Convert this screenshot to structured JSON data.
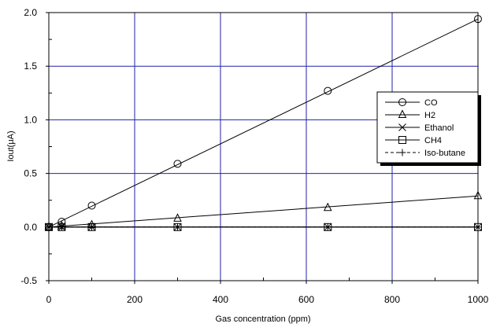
{
  "chart_data": {
    "type": "line",
    "title": "",
    "xlabel": "Gas concentration (ppm)",
    "ylabel": "Iout(μA)",
    "xlim": [
      0,
      1000
    ],
    "ylim": [
      -0.5,
      2.0
    ],
    "x_ticks": [
      "0",
      "200",
      "400",
      "600",
      "800",
      "1000"
    ],
    "y_ticks": [
      "-0.5",
      "0.0",
      "0.5",
      "1.0",
      "1.5",
      "2.0"
    ],
    "x_tick_values": [
      0,
      200,
      400,
      600,
      800,
      1000
    ],
    "y_tick_values": [
      -0.5,
      0.0,
      0.5,
      1.0,
      1.5,
      2.0
    ],
    "grid": true,
    "grid_color": "#2222aa",
    "legend_position": "right",
    "series": [
      {
        "name": "CO",
        "marker": "circle",
        "line": "solid",
        "points": [
          [
            0,
            0.0
          ],
          [
            30,
            0.05
          ],
          [
            100,
            0.2
          ],
          [
            300,
            0.59
          ],
          [
            650,
            1.27
          ],
          [
            1000,
            1.94
          ]
        ],
        "fit": [
          [
            0,
            0.0
          ],
          [
            1000,
            1.94
          ]
        ]
      },
      {
        "name": "H2",
        "marker": "triangle",
        "line": "solid",
        "points": [
          [
            0,
            0.0
          ],
          [
            30,
            0.01
          ],
          [
            100,
            0.02
          ],
          [
            300,
            0.08
          ],
          [
            650,
            0.18
          ],
          [
            1000,
            0.29
          ]
        ],
        "fit": [
          [
            0,
            0.0
          ],
          [
            1000,
            0.29
          ]
        ]
      },
      {
        "name": "Ethanol",
        "marker": "x",
        "line": "solid",
        "points": [
          [
            0,
            0.0
          ],
          [
            30,
            0.0
          ],
          [
            100,
            0.0
          ],
          [
            300,
            0.0
          ],
          [
            650,
            0.0
          ],
          [
            1000,
            0.0
          ]
        ],
        "fit": [
          [
            0,
            0.0
          ],
          [
            1000,
            0.0
          ]
        ]
      },
      {
        "name": "CH4",
        "marker": "square",
        "line": "solid",
        "points": [
          [
            0,
            0.0
          ],
          [
            30,
            0.0
          ],
          [
            100,
            0.0
          ],
          [
            300,
            0.0
          ],
          [
            650,
            0.0
          ],
          [
            1000,
            0.0
          ]
        ],
        "fit": [
          [
            0,
            0.0
          ],
          [
            1000,
            0.0
          ]
        ]
      },
      {
        "name": "Iso-butane",
        "marker": "plus",
        "line": "dashed",
        "points": [
          [
            0,
            0.0
          ],
          [
            30,
            0.0
          ],
          [
            100,
            0.0
          ],
          [
            300,
            0.0
          ],
          [
            650,
            0.0
          ],
          [
            1000,
            0.0
          ]
        ],
        "fit": [
          [
            0,
            0.0
          ],
          [
            1000,
            0.0
          ]
        ]
      }
    ]
  }
}
